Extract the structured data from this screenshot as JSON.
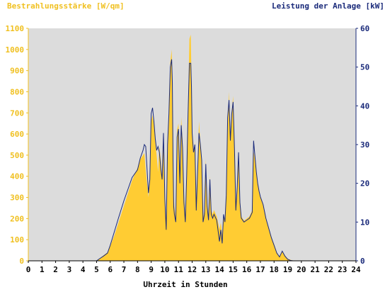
{
  "colors": {
    "background": "#ffffff",
    "plot_area": "#dcdcdc",
    "irradiance": "#ffcc33",
    "power": "#1a2a7a",
    "left_axis_text": "#f0c020",
    "right_axis_text": "#1a2a7a",
    "x_axis_text": "#000000"
  },
  "chart_data": {
    "type": "area",
    "ylabel_left": "Bestrahlungsstärke [W/qm]",
    "ylabel_right": "Leistung der Anlage [kW]",
    "xlabel": "Uhrzeit in Stunden",
    "xlim": [
      0,
      24
    ],
    "ylim_left": [
      0,
      1100
    ],
    "ylim_right": [
      0,
      60
    ],
    "x_ticks": [
      0,
      1,
      2,
      3,
      4,
      5,
      6,
      7,
      8,
      9,
      10,
      11,
      12,
      13,
      14,
      15,
      16,
      17,
      18,
      19,
      20,
      21,
      22,
      23,
      24
    ],
    "y_left_ticks": [
      0,
      100,
      200,
      300,
      400,
      500,
      600,
      700,
      800,
      900,
      1000,
      1100
    ],
    "y_right_ticks": [
      0,
      10,
      20,
      30,
      40,
      50,
      60
    ],
    "grid": false,
    "series": [
      {
        "axis": "left",
        "style": "area",
        "x": [
          0,
          5.0,
          5.2,
          5.5,
          5.8,
          6.0,
          6.3,
          6.6,
          7.0,
          7.3,
          7.6,
          8.0,
          8.2,
          8.4,
          8.5,
          8.6,
          8.8,
          8.9,
          9.0,
          9.1,
          9.2,
          9.3,
          9.4,
          9.5,
          9.6,
          9.7,
          9.8,
          9.9,
          10.0,
          10.1,
          10.2,
          10.3,
          10.4,
          10.5,
          10.55,
          10.6,
          10.65,
          10.7,
          10.8,
          10.9,
          11.0,
          11.1,
          11.2,
          11.3,
          11.4,
          11.5,
          11.6,
          11.7,
          11.8,
          11.9,
          11.95,
          12.0,
          12.1,
          12.2,
          12.3,
          12.4,
          12.5,
          12.6,
          12.7,
          12.8,
          12.9,
          13.0,
          13.1,
          13.2,
          13.3,
          13.4,
          13.5,
          13.6,
          13.8,
          14.0,
          14.1,
          14.2,
          14.3,
          14.4,
          14.5,
          14.6,
          14.7,
          14.8,
          14.9,
          15.0,
          15.1,
          15.2,
          15.3,
          15.4,
          15.5,
          15.6,
          15.7,
          15.8,
          16.0,
          16.2,
          16.4,
          16.5,
          16.6,
          16.7,
          16.8,
          16.9,
          17.0,
          17.2,
          17.4,
          17.6,
          17.8,
          18.0,
          18.2,
          18.4,
          18.6,
          18.8,
          19.0,
          19.2,
          19.4,
          19.6,
          19.8,
          20.0,
          20.1,
          24
        ],
        "values": [
          0,
          0,
          10,
          25,
          40,
          70,
          120,
          180,
          260,
          320,
          380,
          440,
          480,
          500,
          510,
          430,
          300,
          380,
          660,
          690,
          640,
          560,
          500,
          420,
          540,
          480,
          380,
          600,
          300,
          160,
          560,
          700,
          940,
          1000,
          880,
          520,
          300,
          260,
          200,
          620,
          650,
          400,
          680,
          560,
          320,
          220,
          420,
          720,
          1050,
          1070,
          860,
          620,
          520,
          560,
          260,
          430,
          660,
          560,
          480,
          200,
          240,
          480,
          280,
          210,
          400,
          240,
          220,
          240,
          210,
          150,
          180,
          120,
          220,
          190,
          320,
          640,
          800,
          560,
          700,
          780,
          540,
          260,
          360,
          520,
          300,
          210,
          200,
          190,
          200,
          210,
          240,
          520,
          480,
          420,
          360,
          330,
          300,
          260,
          200,
          160,
          110,
          80,
          40,
          20,
          45,
          25,
          10,
          5,
          0,
          0,
          0,
          0,
          0,
          0
        ]
      },
      {
        "axis": "right",
        "style": "line",
        "x": [
          0,
          5.0,
          5.2,
          5.5,
          5.8,
          6.0,
          6.3,
          6.6,
          7.0,
          7.3,
          7.6,
          8.0,
          8.2,
          8.4,
          8.5,
          8.6,
          8.8,
          8.9,
          9.0,
          9.1,
          9.2,
          9.3,
          9.4,
          9.5,
          9.6,
          9.7,
          9.8,
          9.9,
          10.0,
          10.1,
          10.2,
          10.3,
          10.4,
          10.5,
          10.55,
          10.6,
          10.65,
          10.7,
          10.8,
          10.9,
          11.0,
          11.1,
          11.2,
          11.3,
          11.4,
          11.5,
          11.6,
          11.7,
          11.8,
          11.9,
          11.95,
          12.0,
          12.1,
          12.2,
          12.3,
          12.4,
          12.5,
          12.6,
          12.7,
          12.8,
          12.9,
          13.0,
          13.1,
          13.2,
          13.3,
          13.4,
          13.5,
          13.6,
          13.8,
          14.0,
          14.1,
          14.2,
          14.3,
          14.4,
          14.5,
          14.6,
          14.7,
          14.8,
          14.9,
          15.0,
          15.1,
          15.2,
          15.3,
          15.4,
          15.5,
          15.6,
          15.7,
          15.8,
          16.0,
          16.2,
          16.4,
          16.5,
          16.6,
          16.7,
          16.8,
          16.9,
          17.0,
          17.2,
          17.4,
          17.6,
          17.8,
          18.0,
          18.2,
          18.4,
          18.6,
          18.8,
          19.0,
          19.2,
          19.4,
          19.6,
          19.8,
          20.0,
          20.1,
          24
        ],
        "values": [
          0,
          0,
          0.5,
          1.2,
          2.0,
          4.0,
          7.5,
          11.0,
          15.5,
          18.5,
          21.5,
          23.5,
          26.5,
          28.5,
          30.0,
          29.5,
          17.5,
          21.0,
          38.0,
          39.5,
          36.0,
          31.5,
          28.5,
          29.5,
          28.0,
          24.0,
          21.0,
          33.0,
          16.0,
          8.0,
          30.0,
          38.0,
          50.0,
          52.0,
          46.0,
          26.0,
          14.0,
          12.0,
          10.0,
          32.0,
          34.0,
          20.0,
          35.0,
          29.0,
          15.0,
          10.0,
          22.0,
          38.0,
          51.0,
          51.0,
          45.0,
          33.0,
          28.0,
          30.0,
          13.0,
          23.0,
          33.0,
          30.0,
          26.0,
          10.0,
          12.0,
          25.0,
          14.0,
          10.5,
          21.0,
          12.0,
          11.0,
          12.0,
          10.5,
          5.0,
          8.0,
          4.5,
          12.0,
          10.0,
          17.0,
          37.0,
          41.5,
          31.0,
          38.0,
          41.0,
          29.0,
          13.0,
          19.0,
          28.0,
          15.0,
          11.0,
          10.5,
          10.0,
          10.5,
          11.0,
          12.5,
          31.0,
          27.0,
          23.0,
          20.0,
          18.0,
          16.5,
          14.5,
          11.0,
          8.5,
          6.0,
          4.0,
          2.0,
          1.0,
          2.5,
          1.2,
          0.4,
          0.1,
          0,
          0,
          0,
          0,
          0,
          0
        ]
      }
    ]
  }
}
